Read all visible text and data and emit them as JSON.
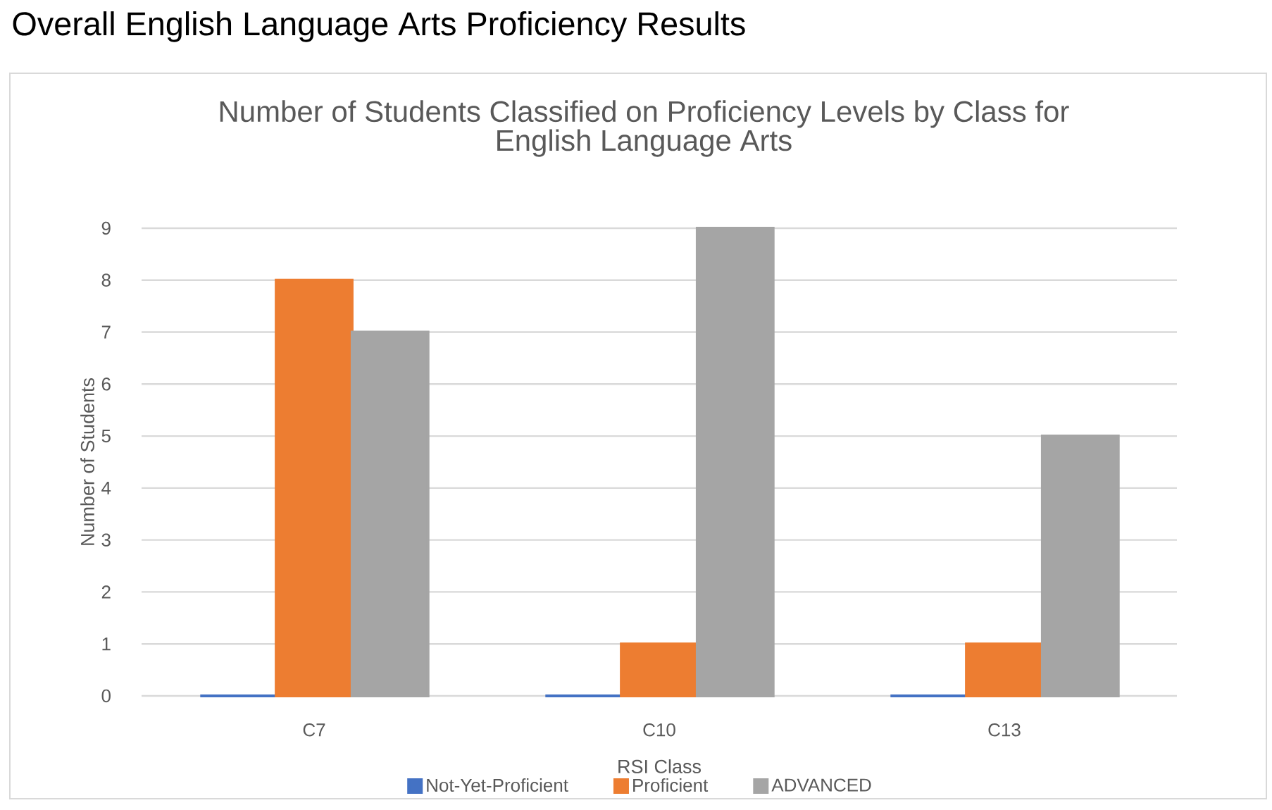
{
  "chart_data": {
    "type": "bar",
    "title": "Overall English Language Arts Proficiency Results",
    "subtitle": "Number of Students Classified on Proficiency Levels by Class for English Language Arts",
    "xlabel": "RSI Class",
    "ylabel": "Number of Students",
    "categories": [
      "C7",
      "C10",
      "C13"
    ],
    "series": [
      {
        "name": "Not-Yet-Proficient",
        "color": "#4472c4",
        "values": [
          0,
          0,
          0
        ]
      },
      {
        "name": "Proficient",
        "color": "#ed7d31",
        "values": [
          8,
          1,
          1
        ]
      },
      {
        "name": "ADVANCED",
        "color": "#a5a5a5",
        "values": [
          7,
          9,
          5
        ]
      }
    ],
    "ylim": [
      0,
      9
    ],
    "yticks": [
      0,
      1,
      2,
      3,
      4,
      5,
      6,
      7,
      8,
      9
    ],
    "grid": "y",
    "legend": "bottom"
  }
}
